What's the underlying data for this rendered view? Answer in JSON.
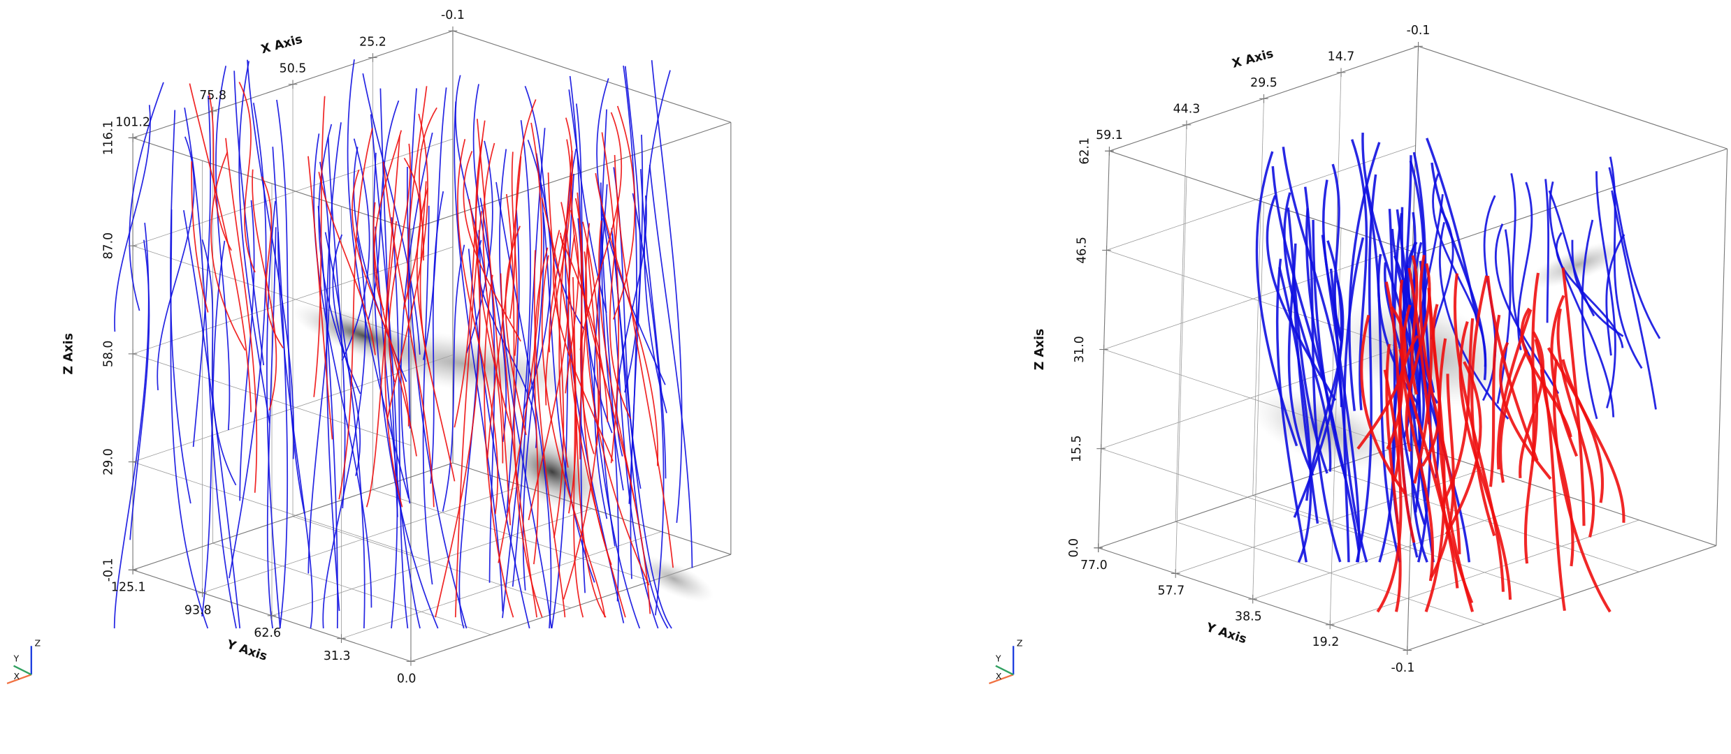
{
  "panels": [
    {
      "x_axis": {
        "title": "X Axis",
        "ticks": [
          "101.2",
          "75.8",
          "50.5",
          "25.2",
          "-0.1"
        ]
      },
      "y_axis": {
        "title": "Y Axis",
        "ticks": [
          "125.1",
          "93.8",
          "62.6",
          "31.3",
          "0.0"
        ]
      },
      "z_axis": {
        "title": "Z Axis",
        "ticks": [
          "116.1",
          "87.0",
          "58.0",
          "29.0",
          "-0.1"
        ]
      },
      "orientation_widget": {
        "x": "X",
        "y": "Y",
        "z": "Z"
      }
    },
    {
      "x_axis": {
        "title": "X Axis",
        "ticks": [
          "59.1",
          "44.3",
          "29.5",
          "14.7",
          "-0.1"
        ]
      },
      "y_axis": {
        "title": "Y Axis",
        "ticks": [
          "77.0",
          "57.7",
          "38.5",
          "19.2",
          "-0.1"
        ]
      },
      "z_axis": {
        "title": "Z Axis",
        "ticks": [
          "62.1",
          "46.5",
          "31.0",
          "15.5",
          "0.0"
        ]
      },
      "orientation_widget": {
        "x": "X",
        "y": "Y",
        "z": "Z"
      }
    }
  ]
}
